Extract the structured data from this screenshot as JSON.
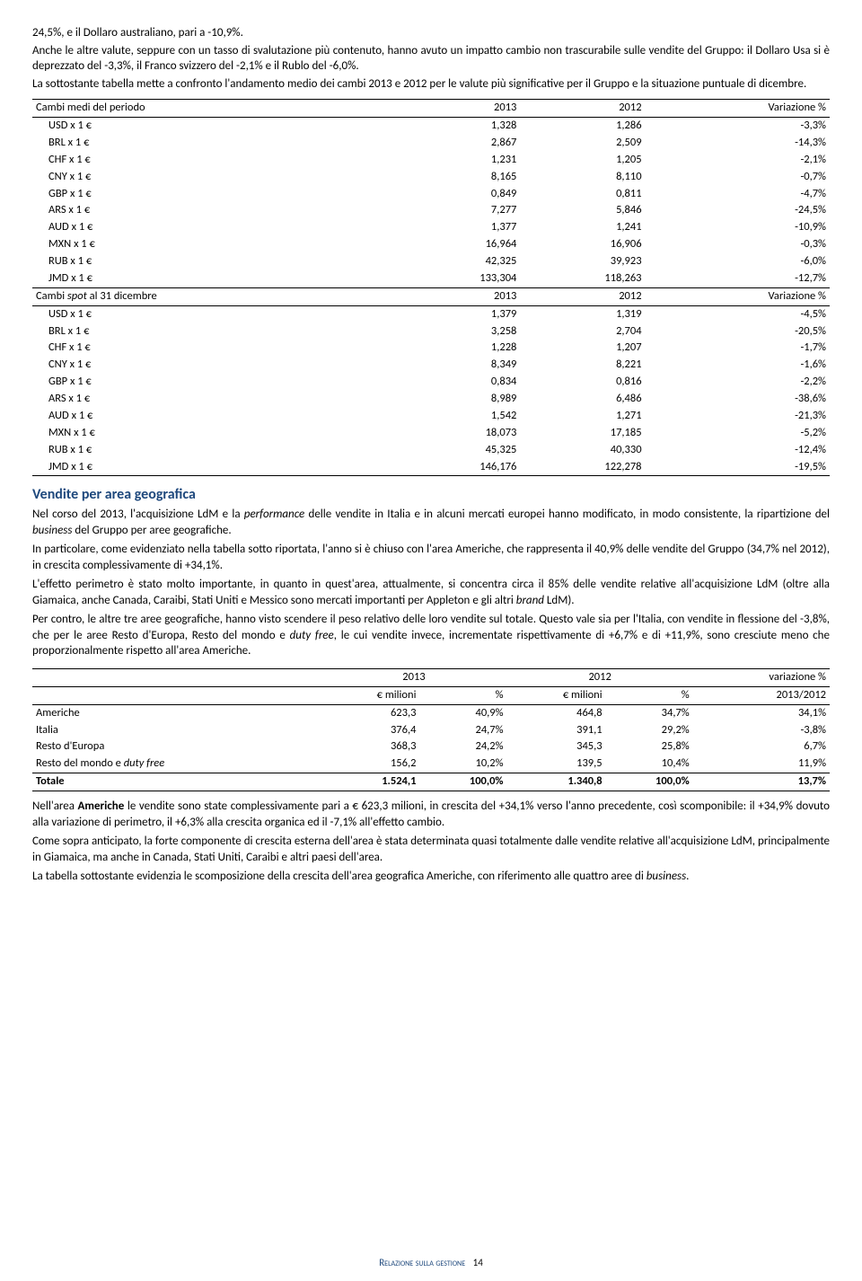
{
  "intro": {
    "p1": "24,5%, e il Dollaro australiano, pari a -10,9%.",
    "p2": "Anche le altre valute, seppure con un tasso di svalutazione più contenuto, hanno avuto un impatto cambio non trascurabile sulle vendite del Gruppo: il Dollaro Usa si è deprezzato del -3,3%, il Franco svizzero del -2,1% e il Rublo del -6,0%.",
    "p3": "La sottostante tabella mette a confronto l'andamento medio dei cambi 2013 e 2012 per le valute più significative per il Gruppo e la situazione puntuale di dicembre."
  },
  "table1": {
    "head1": {
      "c0": "Cambi medi del periodo",
      "c1": "2013",
      "c2": "2012",
      "c3": "Variazione %"
    },
    "rows1": [
      {
        "c0": "USD x 1 €",
        "c1": "1,328",
        "c2": "1,286",
        "c3": "-3,3%"
      },
      {
        "c0": "BRL x 1 €",
        "c1": "2,867",
        "c2": "2,509",
        "c3": "-14,3%"
      },
      {
        "c0": "CHF x 1 €",
        "c1": "1,231",
        "c2": "1,205",
        "c3": "-2,1%"
      },
      {
        "c0": "CNY x 1 €",
        "c1": "8,165",
        "c2": "8,110",
        "c3": "-0,7%"
      },
      {
        "c0": "GBP x 1 €",
        "c1": "0,849",
        "c2": "0,811",
        "c3": "-4,7%"
      },
      {
        "c0": "ARS x 1 €",
        "c1": "7,277",
        "c2": "5,846",
        "c3": "-24,5%"
      },
      {
        "c0": "AUD x 1 €",
        "c1": "1,377",
        "c2": "1,241",
        "c3": "-10,9%"
      },
      {
        "c0": "MXN x 1 €",
        "c1": "16,964",
        "c2": "16,906",
        "c3": "-0,3%"
      },
      {
        "c0": "RUB x 1 €",
        "c1": "42,325",
        "c2": "39,923",
        "c3": "-6,0%"
      },
      {
        "c0": "JMD x 1 €",
        "c1": "133,304",
        "c2": "118,263",
        "c3": "-12,7%"
      }
    ],
    "head2": {
      "c0": "Cambi spot al 31 dicembre",
      "c1": "2013",
      "c2": "2012",
      "c3": "Variazione %"
    },
    "rows2": [
      {
        "c0": "USD x 1 €",
        "c1": "1,379",
        "c2": "1,319",
        "c3": "-4,5%"
      },
      {
        "c0": "BRL x 1 €",
        "c1": "3,258",
        "c2": "2,704",
        "c3": "-20,5%"
      },
      {
        "c0": "CHF x 1 €",
        "c1": "1,228",
        "c2": "1,207",
        "c3": "-1,7%"
      },
      {
        "c0": "CNY x 1 €",
        "c1": "8,349",
        "c2": "8,221",
        "c3": "-1,6%"
      },
      {
        "c0": "GBP x 1 €",
        "c1": "0,834",
        "c2": "0,816",
        "c3": "-2,2%"
      },
      {
        "c0": "ARS x 1 €",
        "c1": "8,989",
        "c2": "6,486",
        "c3": "-38,6%"
      },
      {
        "c0": "AUD x 1 €",
        "c1": "1,542",
        "c2": "1,271",
        "c3": "-21,3%"
      },
      {
        "c0": "MXN x 1 €",
        "c1": "18,073",
        "c2": "17,185",
        "c3": "-5,2%"
      },
      {
        "c0": "RUB x 1 €",
        "c1": "45,325",
        "c2": "40,330",
        "c3": "-12,4%"
      },
      {
        "c0": "JMD x 1 €",
        "c1": "146,176",
        "c2": "122,278",
        "c3": "-19,5%"
      }
    ]
  },
  "section": {
    "title": "Vendite per area geografica",
    "p1a": "Nel corso del 2013, l'acquisizione LdM e la ",
    "p1i": "performance",
    "p1b": " delle vendite in Italia e in alcuni mercati europei hanno modificato, in modo consistente, la ripartizione del ",
    "p1i2": "business",
    "p1c": " del Gruppo per aree geografiche.",
    "p2": "In particolare, come evidenziato nella tabella sotto riportata, l'anno si è chiuso con l'area Americhe, che rappresenta il 40,9% delle vendite del Gruppo (34,7% nel 2012), in crescita complessivamente di +34,1%.",
    "p3a": "L'effetto perimetro è stato molto importante, in quanto in quest'area, attualmente, si concentra circa il 85% delle vendite relative all'acquisizione LdM (oltre alla Giamaica, anche Canada, Caraibi, Stati Uniti e Messico sono mercati importanti per Appleton e gli altri ",
    "p3i": "brand",
    "p3b": " LdM).",
    "p4a": "Per contro, le altre tre aree geografiche, hanno visto scendere il peso relativo delle loro vendite sul totale. Questo vale sia per l'Italia, con vendite in flessione del -3,8%, che per le aree Resto d'Europa, Resto del mondo e ",
    "p4i": "duty free",
    "p4b": ", le cui vendite invece, incrementate rispettivamente di +6,7% e di +11,9%, sono cresciute meno che proporzionalmente rispetto all'area Americhe."
  },
  "table2": {
    "h1": {
      "c1": "2013",
      "c3": "2012",
      "c5": "variazione %"
    },
    "h2": {
      "c1": "€ milioni",
      "c2": "%",
      "c3": "€ milioni",
      "c4": "%",
      "c5": "2013/2012"
    },
    "rows": [
      {
        "c0": "Americhe",
        "c1": "623,3",
        "c2": "40,9%",
        "c3": "464,8",
        "c4": "34,7%",
        "c5": "34,1%"
      },
      {
        "c0": "Italia",
        "c1": "376,4",
        "c2": "24,7%",
        "c3": "391,1",
        "c4": "29,2%",
        "c5": "-3,8%"
      },
      {
        "c0": "Resto d'Europa",
        "c1": "368,3",
        "c2": "24,2%",
        "c3": "345,3",
        "c4": "25,8%",
        "c5": "6,7%"
      },
      {
        "c0": "Resto del mondo e duty free",
        "c1": "156,2",
        "c2": "10,2%",
        "c3": "139,5",
        "c4": "10,4%",
        "c5": "11,9%"
      }
    ],
    "total": {
      "c0": "Totale",
      "c1": "1.524,1",
      "c2": "100,0%",
      "c3": "1.340,8",
      "c4": "100,0%",
      "c5": "13,7%"
    }
  },
  "closing": {
    "p1a": "Nell'area ",
    "p1b": "Americhe",
    "p1c": " le vendite sono state complessivamente pari a € 623,3 milioni, in crescita del +34,1% verso l'anno precedente, così scomponibile: il +34,9% dovuto alla variazione di perimetro, il +6,3% alla crescita organica ed il -7,1% all'effetto cambio.",
    "p2": "Come sopra anticipato, la forte componente di crescita esterna dell'area è stata determinata quasi totalmente dalle vendite relative all'acquisizione LdM, principalmente in Giamaica, ma anche in Canada, Stati Uniti, Caraibi e altri paesi dell'area.",
    "p3a": "La tabella sottostante evidenzia le scomposizione della crescita dell'area geografica Americhe, con riferimento alle quattro aree di ",
    "p3i": "business",
    "p3b": "."
  },
  "footer": {
    "text": "Relazione sulla gestione",
    "page": "14"
  },
  "head2_italic": "spot"
}
